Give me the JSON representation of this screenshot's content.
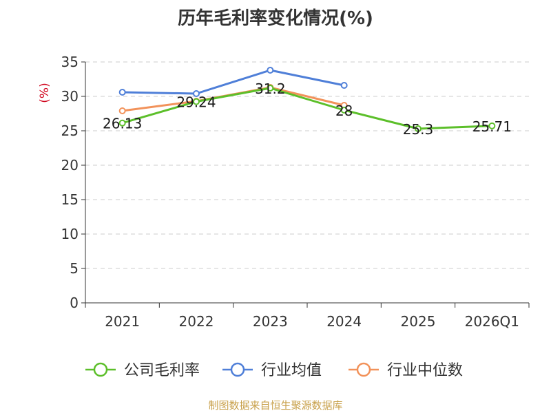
{
  "chart_data": {
    "type": "line",
    "title": "历年毛利率变化情况(%)",
    "ylabel": "(%)",
    "xlabel": "",
    "categories": [
      "2021",
      "2022",
      "2023",
      "2024",
      "2025",
      "2026Q1"
    ],
    "ylim": [
      0,
      35
    ],
    "yticks": [
      0,
      5,
      10,
      15,
      20,
      25,
      30,
      35
    ],
    "grid": true,
    "legend_position": "bottom",
    "series": [
      {
        "name": "公司毛利率",
        "color": "#5cbf2a",
        "values": [
          26.13,
          29.24,
          31.2,
          28,
          25.3,
          25.71
        ],
        "labels": [
          "26.13",
          "29.24",
          "31.2",
          "28",
          "25.3",
          "25.71"
        ]
      },
      {
        "name": "行业均值",
        "color": "#4f7fd8",
        "values": [
          30.6,
          30.4,
          33.8,
          31.6,
          null,
          null
        ]
      },
      {
        "name": "行业中位数",
        "color": "#f2925a",
        "values": [
          27.9,
          29.3,
          31.3,
          28.7,
          null,
          null
        ]
      }
    ]
  },
  "footer": {
    "source": "制图数据来自恒生聚源数据库"
  }
}
